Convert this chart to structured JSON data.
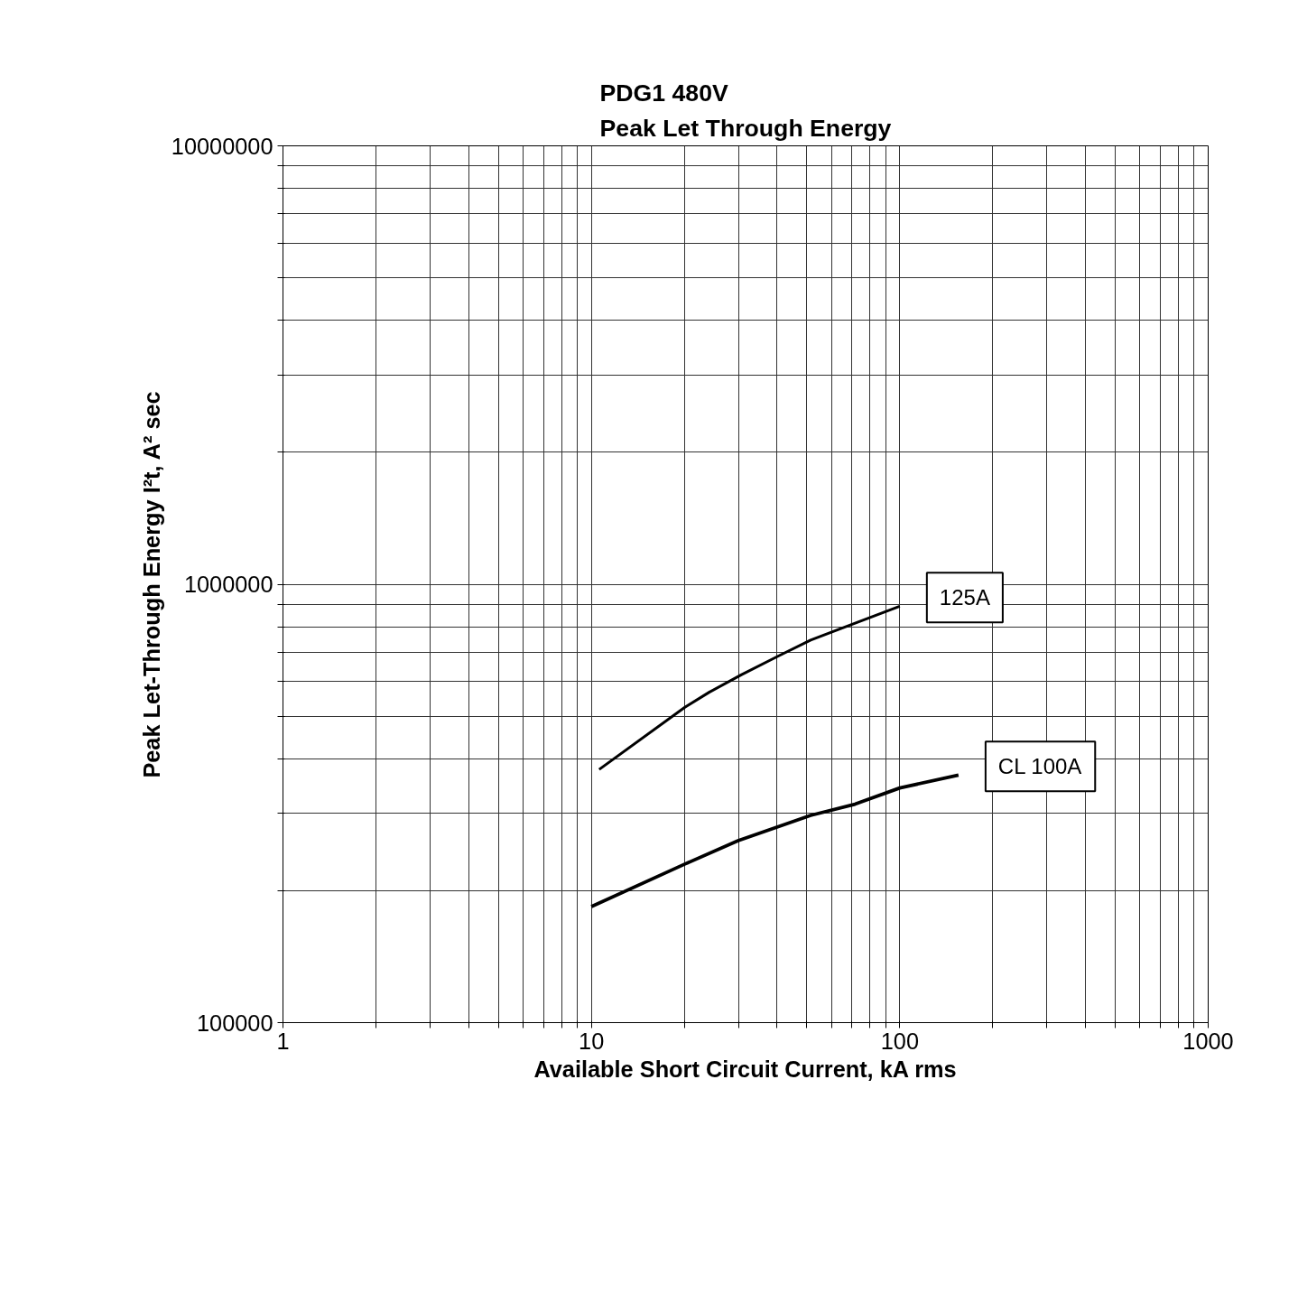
{
  "chart_data": {
    "type": "line",
    "title": "PDG1 480V\nPeak Let Through Energy",
    "xlabel": "Available Short Circuit Current, kA rms",
    "ylabel": "Peak Let-Through Energy I²t, A² sec",
    "log": "xy",
    "grid": true,
    "marker": "none",
    "line_style": "solid",
    "xlim": [
      1,
      1000
    ],
    "ylim": [
      100000,
      10000000
    ],
    "xticks": [
      1,
      {
        "value": 2,
        "label": null
      },
      {
        "value": 3,
        "label": null
      },
      {
        "value": 4,
        "label": null
      },
      {
        "value": 5,
        "label": null
      },
      {
        "value": 6,
        "label": null
      },
      {
        "value": 7,
        "label": null
      },
      {
        "value": 8,
        "label": null
      },
      {
        "value": 9,
        "label": null
      },
      10,
      {
        "value": 20,
        "label": null
      },
      {
        "value": 30,
        "label": null
      },
      {
        "value": 40,
        "label": null
      },
      {
        "value": 50,
        "label": null
      },
      {
        "value": 60,
        "label": null
      },
      {
        "value": 70,
        "label": null
      },
      {
        "value": 80,
        "label": null
      },
      {
        "value": 90,
        "label": null
      },
      100,
      {
        "value": 200,
        "label": null
      },
      {
        "value": 300,
        "label": null
      },
      {
        "value": 400,
        "label": null
      },
      {
        "value": 500,
        "label": null
      },
      {
        "value": 600,
        "label": null
      },
      {
        "value": 700,
        "label": null
      },
      {
        "value": 800,
        "label": null
      },
      {
        "value": 900,
        "label": null
      },
      1000
    ],
    "yticks": [
      100000,
      {
        "value": 200000,
        "label": null
      },
      {
        "value": 300000,
        "label": null
      },
      {
        "value": 400000,
        "label": null
      },
      {
        "value": 500000,
        "label": null
      },
      {
        "value": 600000,
        "label": null
      },
      {
        "value": 700000,
        "label": null
      },
      {
        "value": 800000,
        "label": null
      },
      {
        "value": 900000,
        "label": null
      },
      1000000,
      {
        "value": 2000000,
        "label": null
      },
      {
        "value": 3000000,
        "label": null
      },
      {
        "value": 4000000,
        "label": null
      },
      {
        "value": 5000000,
        "label": null
      },
      {
        "value": 6000000,
        "label": null
      },
      {
        "value": 7000000,
        "label": null
      },
      {
        "value": 8000000,
        "label": null
      },
      {
        "value": 9000000,
        "label": null
      },
      10000000
    ],
    "series": [
      {
        "name": "125A",
        "color": "#000000",
        "x": [
          10.6,
          20.1,
          24.1,
          30.7,
          40.4,
          51.4,
          61.6,
          100
        ],
        "values": [
          378000,
          524000,
          567000,
          622000,
          686000,
          746000,
          783000,
          891000
        ]
      },
      {
        "name": "CL 100A",
        "color": "#000000",
        "x": [
          10,
          20.1,
          29.9,
          51.4,
          71.6,
          100,
          155
        ],
        "values": [
          184000,
          230000,
          260000,
          297000,
          315000,
          343000,
          367000
        ]
      }
    ]
  }
}
